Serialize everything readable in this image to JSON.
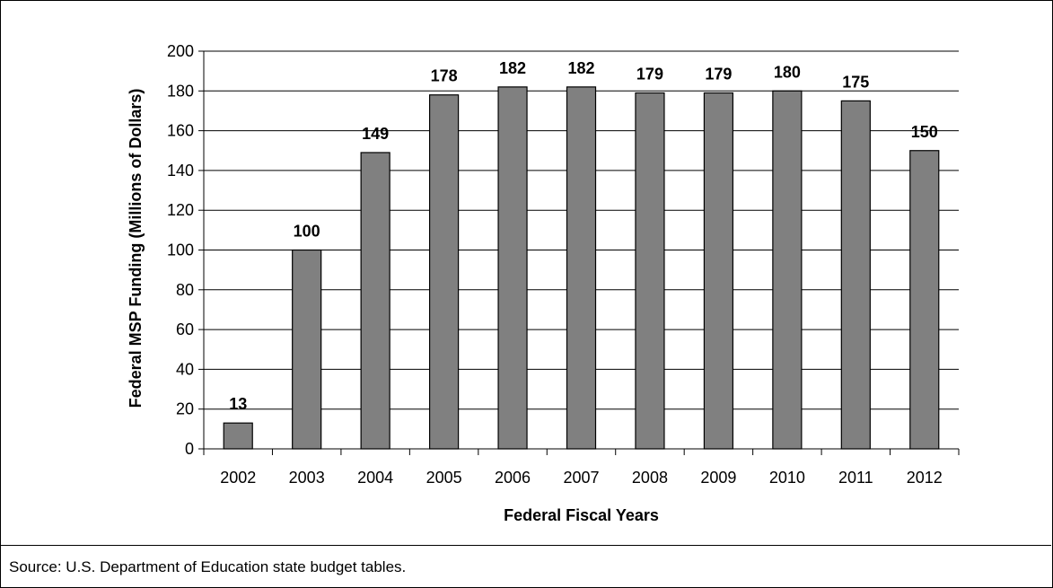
{
  "chart_data": {
    "type": "bar",
    "categories": [
      "2002",
      "2003",
      "2004",
      "2005",
      "2006",
      "2007",
      "2008",
      "2009",
      "2010",
      "2011",
      "2012"
    ],
    "values": [
      13,
      100,
      149,
      178,
      182,
      182,
      179,
      179,
      180,
      175,
      150
    ],
    "xlabel": "Federal Fiscal Years",
    "ylabel": "Federal MSP Funding (Millions of Dollars)",
    "ylim": [
      0,
      200
    ],
    "yticks": [
      0,
      20,
      40,
      60,
      80,
      100,
      120,
      140,
      160,
      180,
      200
    ],
    "grid": true,
    "bar_color": "#808080",
    "data_labels": true
  },
  "source_note": "Source: U.S. Department of Education state budget tables."
}
